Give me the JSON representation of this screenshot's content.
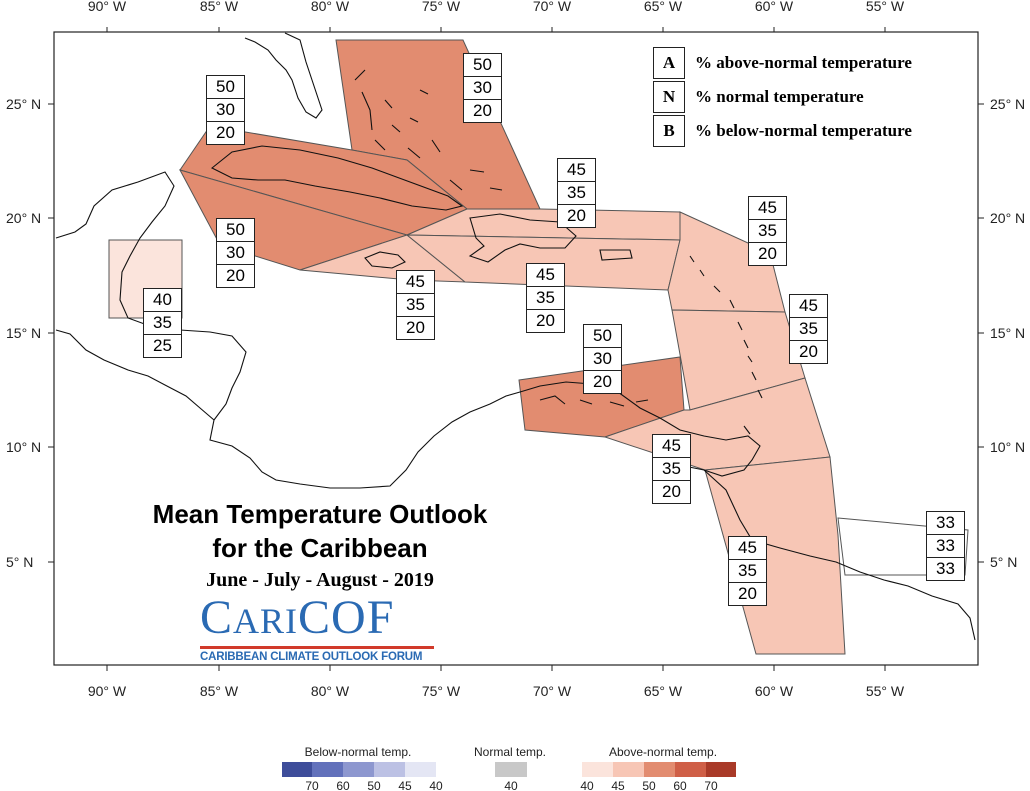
{
  "axes": {
    "lon_ticks": [
      "90° W",
      "85° W",
      "80° W",
      "75° W",
      "70° W",
      "65° W",
      "60° W",
      "55° W"
    ],
    "lat_ticks": [
      "25° N",
      "20° N",
      "15° N",
      "10° N",
      "5° N"
    ]
  },
  "legend_box": [
    {
      "key": "A",
      "text": "% above-normal temperature"
    },
    {
      "key": "N",
      "text": "% normal temperature"
    },
    {
      "key": "B",
      "text": "% below-normal temperature"
    }
  ],
  "title": {
    "line1": "Mean Temperature Outlook",
    "line2": "for the Caribbean",
    "season": "June - July - August - 2019"
  },
  "logo": {
    "name": "CARICOF",
    "subtitle": "CARIBBEAN CLIMATE OUTLOOK FORUM"
  },
  "regions": [
    {
      "name": "bahamas",
      "probs": [
        50,
        30,
        20
      ],
      "category": "above-normal",
      "fill": "#e28c70"
    },
    {
      "name": "cuba",
      "probs": [
        50,
        30,
        20
      ],
      "category": "above-normal",
      "fill": "#e28c70"
    },
    {
      "name": "cayman-jamaica",
      "probs": [
        50,
        30,
        20
      ],
      "category": "above-normal",
      "fill": "#e28c70"
    },
    {
      "name": "belize",
      "probs": [
        40,
        35,
        25
      ],
      "category": "above-normal",
      "fill": "#fbe4dc"
    },
    {
      "name": "hispaniola-west",
      "probs": [
        45,
        35,
        20
      ],
      "category": "above-normal",
      "fill": "#f7c6b5"
    },
    {
      "name": "puerto-rico-hispaniola-east",
      "probs": [
        45,
        35,
        20
      ],
      "category": "above-normal",
      "fill": "#f7c6b5"
    },
    {
      "name": "turks-caicos",
      "probs": [
        45,
        35,
        20
      ],
      "category": "above-normal",
      "fill": "#f7c6b5"
    },
    {
      "name": "leeward-islands",
      "probs": [
        45,
        35,
        20
      ],
      "category": "above-normal",
      "fill": "#f7c6b5"
    },
    {
      "name": "windward-islands",
      "probs": [
        45,
        35,
        20
      ],
      "category": "above-normal",
      "fill": "#f7c6b5"
    },
    {
      "name": "abc-islands",
      "probs": [
        50,
        30,
        20
      ],
      "category": "above-normal",
      "fill": "#e28c70"
    },
    {
      "name": "trinidad-tobago",
      "probs": [
        45,
        35,
        20
      ],
      "category": "above-normal",
      "fill": "#f7c6b5"
    },
    {
      "name": "guyana",
      "probs": [
        45,
        35,
        20
      ],
      "category": "above-normal",
      "fill": "#f7c6b5"
    },
    {
      "name": "suriname-french-guiana",
      "probs": [
        33,
        33,
        33
      ],
      "category": "climatology",
      "fill": "#ffffff"
    }
  ],
  "colorbar": {
    "below": {
      "title": "Below-normal temp.",
      "ticks": [
        "70",
        "60",
        "50",
        "45",
        "40"
      ],
      "colors": [
        "#3e4d9a",
        "#6271bb",
        "#8d97cf",
        "#bcc1e4",
        "#e4e6f4"
      ]
    },
    "normal": {
      "title": "Normal temp.",
      "ticks": [
        "40"
      ],
      "colors": [
        "#c8c8c8"
      ]
    },
    "above": {
      "title": "Above-normal temp.",
      "ticks": [
        "40",
        "45",
        "50",
        "60",
        "70"
      ],
      "colors": [
        "#fbe4dc",
        "#f7c6b5",
        "#e28c70",
        "#cf5f47",
        "#a93a28"
      ]
    }
  }
}
